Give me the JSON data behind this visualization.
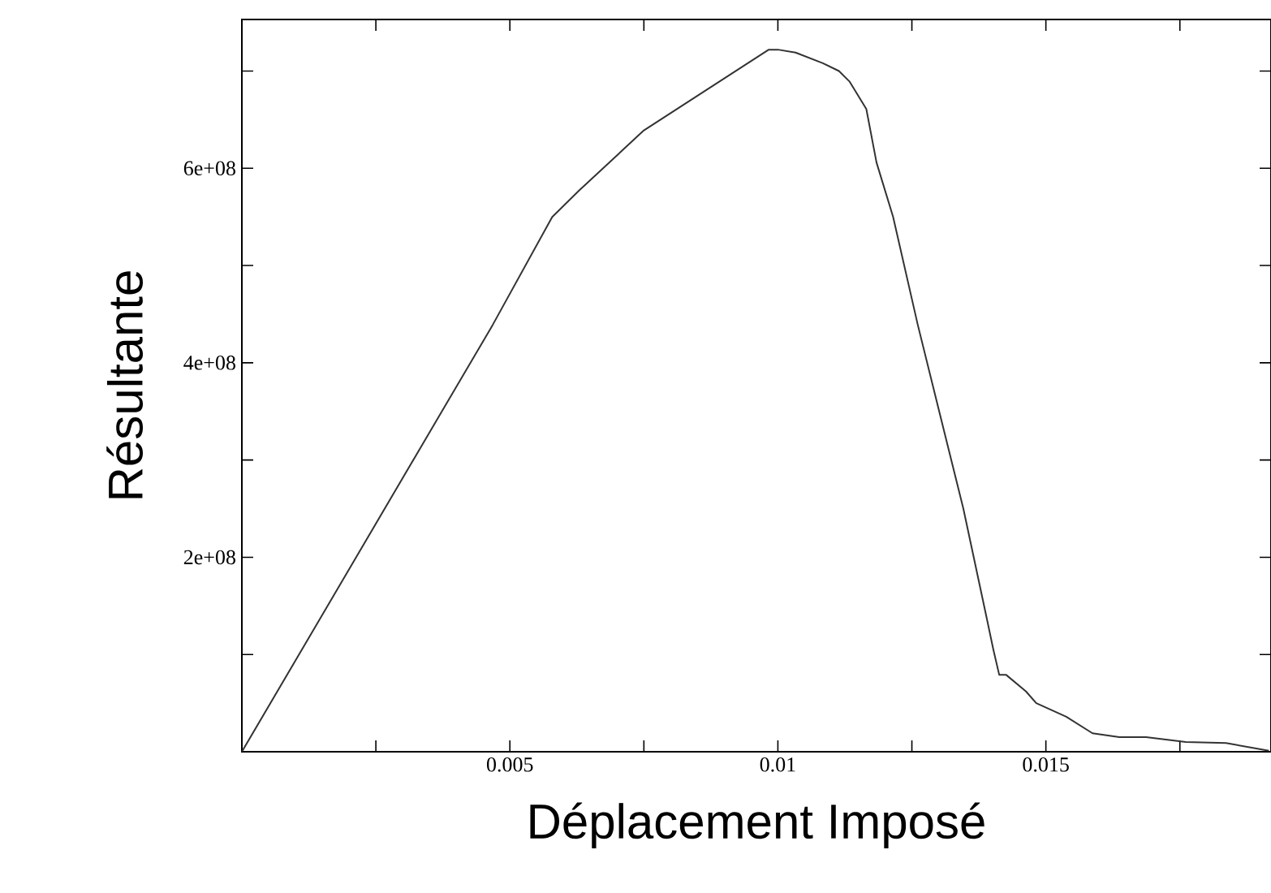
{
  "chart_data": {
    "type": "line",
    "xlabel": "Déplacement Imposé",
    "ylabel": "Résultante",
    "x": [
      0,
      0.00468,
      0.00579,
      0.00629,
      0.0075,
      0.00983,
      0.01,
      0.01033,
      0.01084,
      0.01114,
      0.01134,
      0.01165,
      0.01184,
      0.01215,
      0.01261,
      0.01296,
      0.01346,
      0.01389,
      0.01402,
      0.01413,
      0.01426,
      0.01463,
      0.01482,
      0.01538,
      0.01587,
      0.01637,
      0.01687,
      0.01761,
      0.01836,
      0.01916
    ],
    "series": [
      {
        "color": "#333333",
        "values": [
          0,
          439000000.0,
          550000000.0,
          577000000.0,
          639000000.0,
          722000000.0,
          722000000.0,
          719000000.0,
          708000000.0,
          700000000.0,
          689000000.0,
          661000000.0,
          606000000.0,
          550000000.0,
          439000000.0,
          361000000.0,
          250000000.0,
          139000000.0,
          105000000.0,
          79000000.0,
          79000000.0,
          62000000.0,
          50000000.0,
          36000000.0,
          19000000.0,
          15000000.0,
          15000000.0,
          10000000.0,
          9000000.0,
          1000000.0
        ]
      }
    ],
    "xlim": [
      0,
      0.0192
    ],
    "ylim": [
      0,
      753000000.0
    ],
    "xticks": [
      {
        "value": 0.0025,
        "label": null
      },
      0.005,
      {
        "value": 0.0075,
        "label": null
      },
      0.01,
      {
        "value": 0.0125,
        "label": null
      },
      0.015,
      {
        "value": 0.0175,
        "label": null
      }
    ],
    "yticks": [
      {
        "value": 100000000.0,
        "label": null
      },
      {
        "value": 200000000.0,
        "label": "2e+08"
      },
      {
        "value": 300000000.0,
        "label": null
      },
      {
        "value": 400000000.0,
        "label": "4e+08"
      },
      {
        "value": 500000000.0,
        "label": null
      },
      {
        "value": 600000000.0,
        "label": "6e+08"
      },
      {
        "value": 700000000.0,
        "label": null
      }
    ],
    "marker": "none",
    "line_style": "solid"
  }
}
